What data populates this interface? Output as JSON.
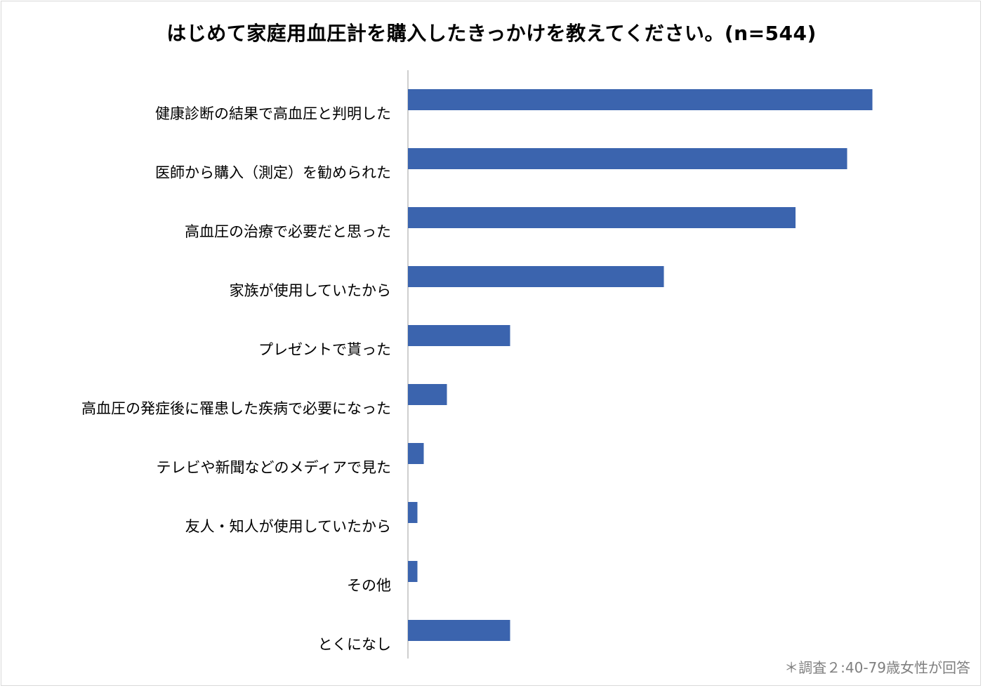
{
  "chart_data": {
    "type": "bar",
    "orientation": "horizontal",
    "title": "はじめて家庭用血圧計を購入したきっかけを教えてください。(n=544)",
    "categories": [
      "健康診断の結果で高血圧と判明した",
      "医師から購入（測定）を勧められた",
      "高血圧の治療で必要だと思った",
      "家族が使用していたから",
      "プレゼントで貰った",
      "高血圧の発症後に罹患した疾病で必要になった",
      "テレビや新聞などのメディアで見た",
      "友人・知人が使用していたから",
      "その他",
      "とくになし"
    ],
    "values": [
      44.1,
      41.7,
      36.8,
      24.3,
      9.7,
      3.7,
      1.5,
      0.9,
      0.9,
      9.7
    ],
    "xlim": [
      0,
      50
    ],
    "grid": false,
    "bar_color": "#3b64ae"
  },
  "footnote": "＊調査２:40-79歳女性が回答"
}
